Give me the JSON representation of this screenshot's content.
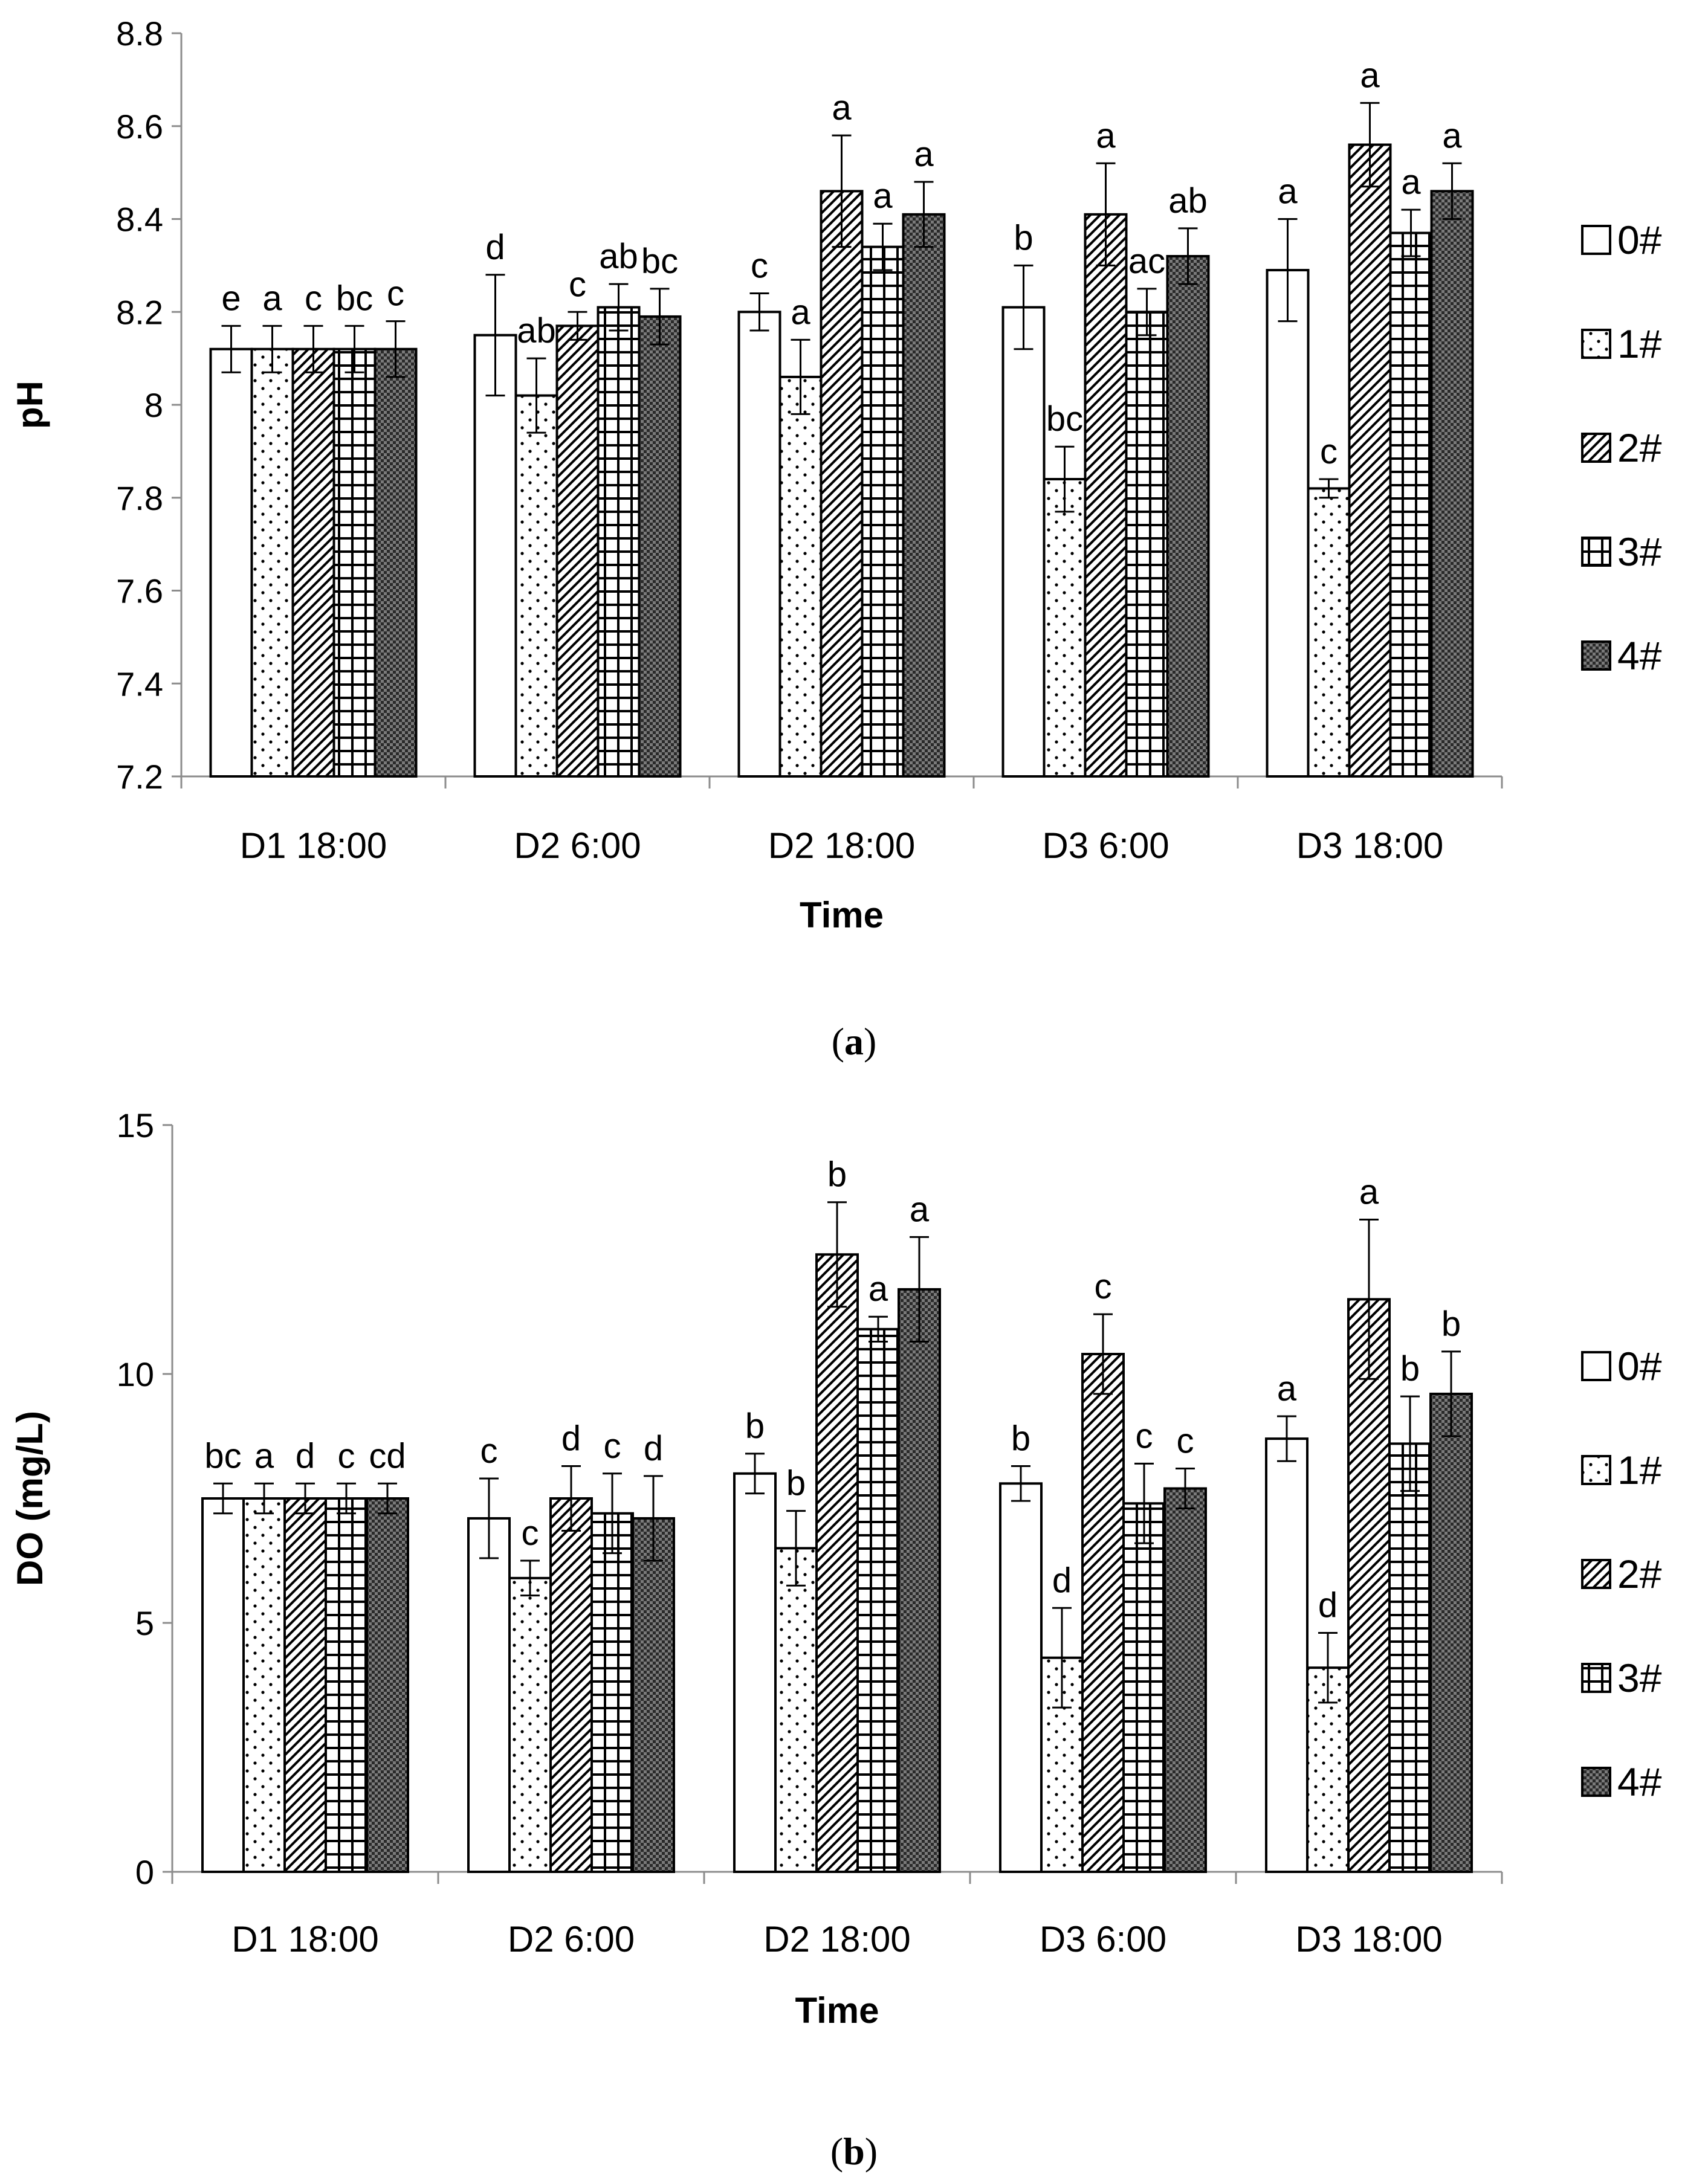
{
  "series_names": [
    "0#",
    "1#",
    "2#",
    "3#",
    "4#"
  ],
  "chart_data": [
    {
      "type": "bar",
      "caption_letter": "a",
      "categories": [
        "D1 18:00",
        "D2 6:00",
        "D2 18:00",
        "D3 6:00",
        "D3 18:00"
      ],
      "xlabel": "Time",
      "ylabel": "pH",
      "ylim": [
        7.2,
        8.8
      ],
      "yticks": [
        7.2,
        7.4,
        7.6,
        7.8,
        8,
        8.2,
        8.4,
        8.6,
        8.8
      ],
      "grid": false,
      "legend_position": "right",
      "series": [
        {
          "name": "0#",
          "values": [
            8.12,
            8.15,
            8.2,
            8.21,
            8.29
          ],
          "errors": [
            0.05,
            0.13,
            0.04,
            0.09,
            0.11
          ],
          "labels": [
            "e",
            "d",
            "c",
            "b",
            "a"
          ]
        },
        {
          "name": "1#",
          "values": [
            8.12,
            8.02,
            8.06,
            7.84,
            7.82
          ],
          "errors": [
            0.05,
            0.08,
            0.08,
            0.07,
            0.02
          ],
          "labels": [
            "a",
            "ab",
            "a",
            "bc",
            "c"
          ]
        },
        {
          "name": "2#",
          "values": [
            8.12,
            8.17,
            8.46,
            8.41,
            8.56
          ],
          "errors": [
            0.05,
            0.03,
            0.12,
            0.11,
            0.09
          ],
          "labels": [
            "c",
            "c",
            "a",
            "a",
            "a"
          ]
        },
        {
          "name": "3#",
          "values": [
            8.12,
            8.21,
            8.34,
            8.2,
            8.37
          ],
          "errors": [
            0.05,
            0.05,
            0.05,
            0.05,
            0.05
          ],
          "labels": [
            "bc",
            "ab",
            "a",
            "ac",
            "a"
          ]
        },
        {
          "name": "4#",
          "values": [
            8.12,
            8.19,
            8.41,
            8.32,
            8.46
          ],
          "errors": [
            0.06,
            0.06,
            0.07,
            0.06,
            0.06
          ],
          "labels": [
            "c",
            "bc",
            "a",
            "ab",
            "a"
          ]
        }
      ]
    },
    {
      "type": "bar",
      "caption_letter": "b",
      "categories": [
        "D1 18:00",
        "D2 6:00",
        "D2 18:00",
        "D3 6:00",
        "D3 18:00"
      ],
      "xlabel": "Time",
      "ylabel": "DO (mg/L)",
      "ylim": [
        0,
        15
      ],
      "yticks": [
        0,
        5,
        10,
        15
      ],
      "grid": false,
      "legend_position": "right",
      "series": [
        {
          "name": "0#",
          "values": [
            7.5,
            7.1,
            8.0,
            7.8,
            8.7
          ],
          "errors": [
            0.3,
            0.8,
            0.4,
            0.35,
            0.45
          ],
          "labels": [
            "bc",
            "c",
            "b",
            "b",
            "a"
          ]
        },
        {
          "name": "1#",
          "values": [
            7.5,
            5.9,
            6.5,
            4.3,
            4.1
          ],
          "errors": [
            0.3,
            0.35,
            0.75,
            1.0,
            0.7
          ],
          "labels": [
            "a",
            "c",
            "b",
            "d",
            "d"
          ]
        },
        {
          "name": "2#",
          "values": [
            7.5,
            7.5,
            12.4,
            10.4,
            11.5
          ],
          "errors": [
            0.3,
            0.65,
            1.05,
            0.8,
            1.6
          ],
          "labels": [
            "d",
            "d",
            "b",
            "c",
            "a"
          ]
        },
        {
          "name": "3#",
          "values": [
            7.5,
            7.2,
            10.9,
            7.4,
            8.6
          ],
          "errors": [
            0.3,
            0.8,
            0.25,
            0.8,
            0.95
          ],
          "labels": [
            "c",
            "c",
            "a",
            "c",
            "b"
          ]
        },
        {
          "name": "4#",
          "values": [
            7.5,
            7.1,
            11.7,
            7.7,
            9.6
          ],
          "errors": [
            0.3,
            0.85,
            1.05,
            0.4,
            0.85
          ],
          "labels": [
            "cd",
            "d",
            "a",
            "c",
            "b"
          ]
        }
      ]
    }
  ]
}
